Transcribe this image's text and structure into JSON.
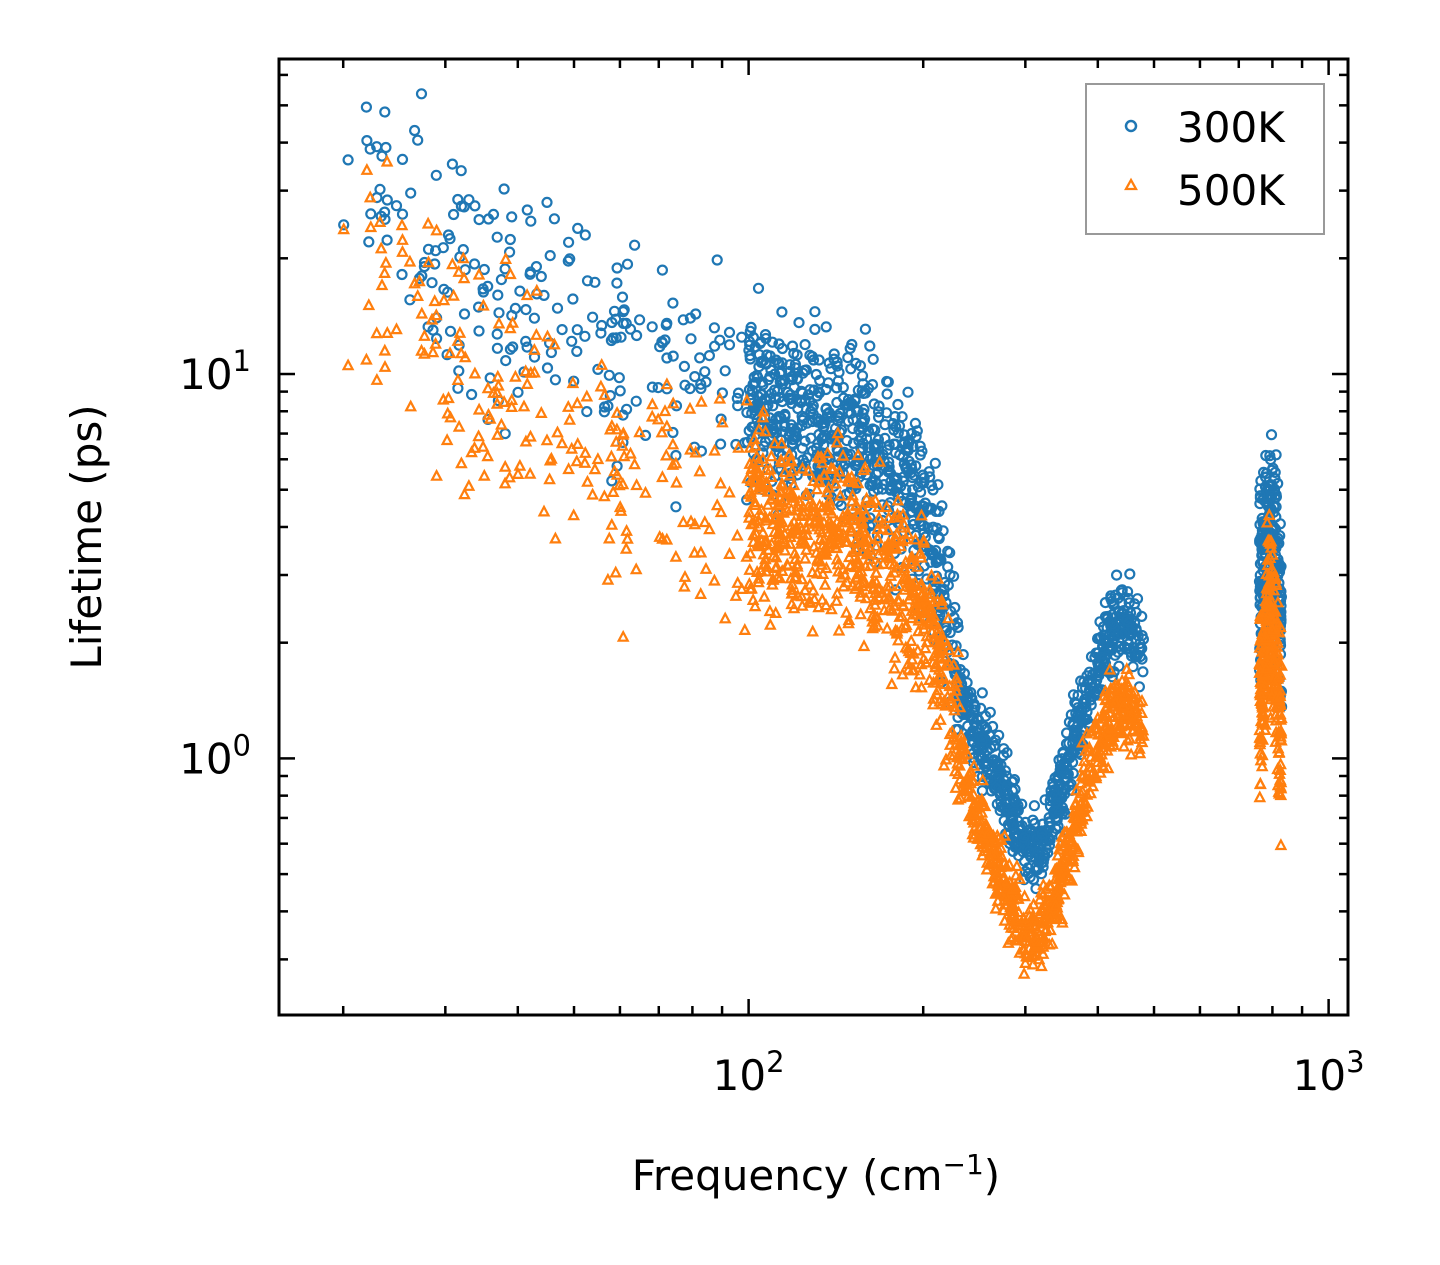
{
  "chart_data": {
    "type": "scatter",
    "xscale": "log",
    "yscale": "log",
    "xlabel": "Frequency (cm",
    "xlabel_sup": "−1",
    "xlabel_close": ")",
    "ylabel": "Lifetime (ps)",
    "xlim": [
      15.5,
      1080
    ],
    "ylim": [
      0.215,
      66
    ],
    "x_major_ticks": [
      {
        "value": 100,
        "base": "10",
        "exp": "2"
      },
      {
        "value": 1000,
        "base": "10",
        "exp": "3"
      }
    ],
    "y_major_ticks": [
      {
        "value": 1,
        "base": "10",
        "exp": "0"
      },
      {
        "value": 10,
        "base": "10",
        "exp": "1"
      }
    ],
    "legend_position": "top-right",
    "colors": {
      "s300": "#1f77b4",
      "s500": "#ff7f0e"
    },
    "series": [
      {
        "name": "300K",
        "marker": "circle",
        "trend_frequency": [
          20,
          25,
          30,
          40,
          50,
          60,
          70,
          80,
          90,
          100,
          120,
          140,
          160,
          180,
          200,
          220,
          230,
          240,
          260,
          280,
          300,
          320,
          340,
          360,
          380,
          400,
          420,
          440,
          460,
          480,
          770,
          790,
          810,
          830
        ],
        "trend_lifetime": [
          28,
          25,
          20,
          15,
          12,
          11,
          10,
          9.5,
          9,
          8.5,
          8,
          7.5,
          6.5,
          5.5,
          4.2,
          2.4,
          1.6,
          1.25,
          1.0,
          0.78,
          0.58,
          0.58,
          0.78,
          1.05,
          1.4,
          1.8,
          2.1,
          2.3,
          2.2,
          1.9,
          3.2,
          3.9,
          3.2,
          2.0
        ]
      },
      {
        "name": "500K",
        "marker": "triangle",
        "trend_frequency": [
          20,
          25,
          30,
          40,
          50,
          60,
          70,
          80,
          90,
          100,
          120,
          140,
          160,
          180,
          200,
          220,
          230,
          240,
          260,
          280,
          300,
          320,
          340,
          360,
          380,
          400,
          420,
          440,
          460,
          480,
          770,
          790,
          810,
          830
        ],
        "trend_lifetime": [
          16,
          15,
          12,
          8.5,
          6.5,
          5.5,
          5,
          4.8,
          4.5,
          4.3,
          4,
          3.8,
          3.5,
          3.0,
          2.4,
          1.6,
          1.1,
          0.78,
          0.6,
          0.45,
          0.35,
          0.35,
          0.45,
          0.62,
          0.85,
          1.05,
          1.25,
          1.4,
          1.3,
          1.2,
          1.5,
          2.8,
          1.8,
          1.0
        ]
      }
    ]
  },
  "legend": {
    "s300": "300K",
    "s500": "500K"
  }
}
